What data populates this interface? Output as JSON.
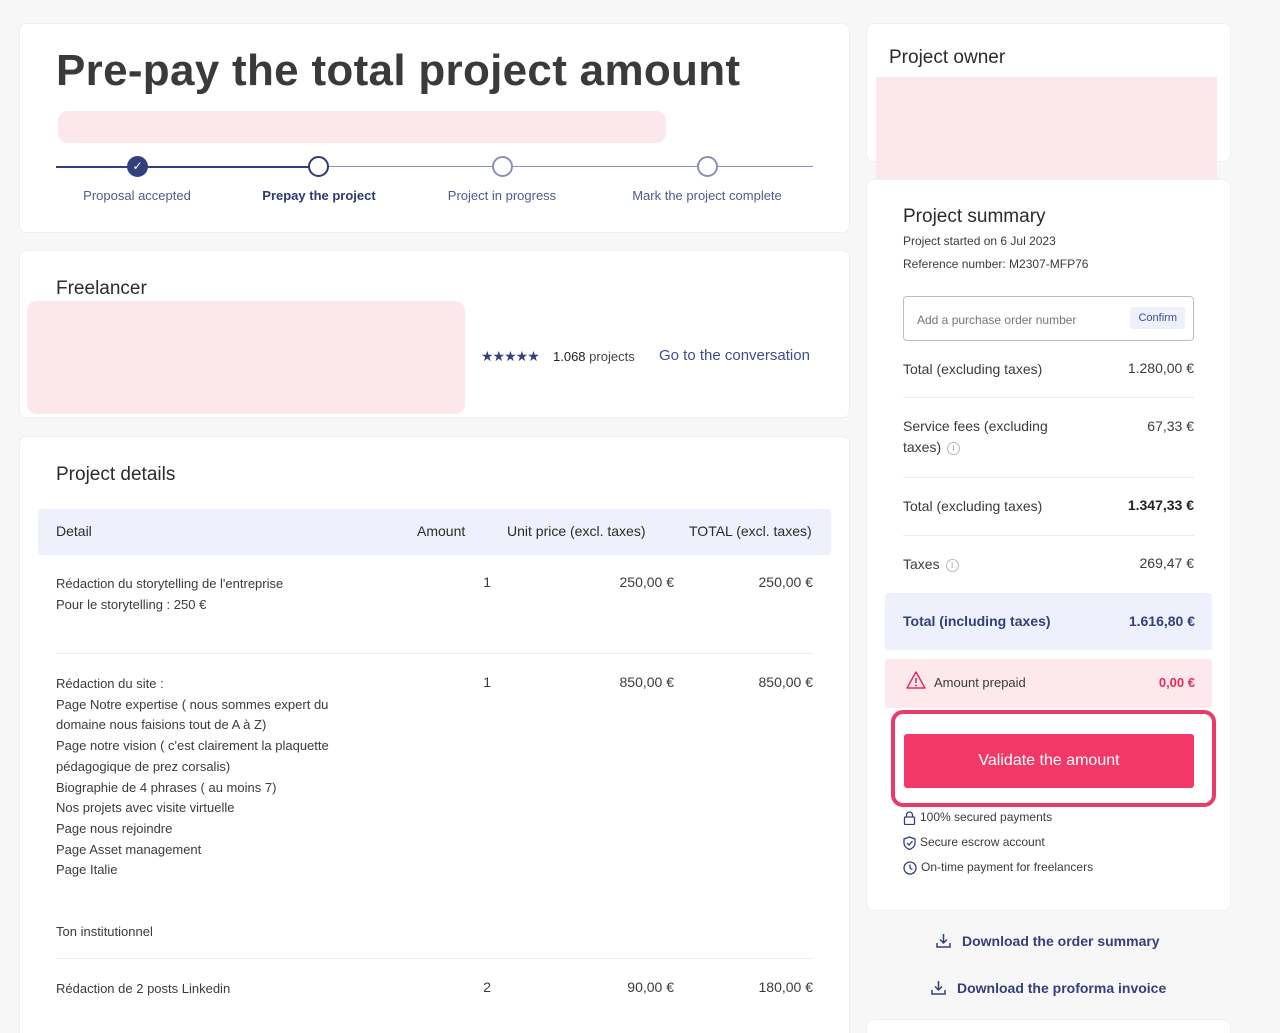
{
  "header": {
    "title": "Pre-pay the total project amount",
    "steps": [
      {
        "label": "Proposal accepted"
      },
      {
        "label": "Prepay the project"
      },
      {
        "label": "Project in progress"
      },
      {
        "label": "Mark the project complete"
      }
    ],
    "current_step": 2
  },
  "freelancer": {
    "title": "Freelancer",
    "rating_stars": "★★★★★",
    "projects_count": "1.068",
    "projects_label": "projects",
    "conversation_link": "Go to the conversation"
  },
  "details": {
    "title": "Project details",
    "columns": [
      "Detail",
      "Amount",
      "Unit price (excl. taxes)",
      "TOTAL (excl. taxes)"
    ],
    "rows": [
      {
        "detail": "Rédaction du storytelling de l'entreprise\nPour le storytelling : 250 €",
        "amount": "1",
        "unit_price": "250,00 €",
        "total": "250,00 €"
      },
      {
        "detail": "Rédaction du site :\nPage Notre expertise ( nous sommes expert du domaine nous faisions tout de A à Z)\nPage notre vision ( c'est clairement la plaquette pédagogique de prez corsalis)\nBiographie de 4 phrases ( au moins 7)\nNos projets avec visite virtuelle\nPage nous rejoindre\nPage Asset management\nPage Italie\n\n\nTon institutionnel",
        "amount": "1",
        "unit_price": "850,00 €",
        "total": "850,00 €"
      },
      {
        "detail": "Rédaction de 2 posts Linkedin",
        "amount": "2",
        "unit_price": "90,00 €",
        "total": "180,00 €"
      }
    ]
  },
  "owner": {
    "title": "Project owner"
  },
  "summary": {
    "title": "Project summary",
    "started": "Project started on 6 Jul 2023",
    "reference": "Reference number: M2307-MFP76",
    "po_placeholder": "Add a purchase order number",
    "po_confirm": "Confirm",
    "lines": [
      {
        "label": "Total (excluding taxes)",
        "value": "1.280,00 €"
      },
      {
        "label": "Service fees (excluding taxes)",
        "value": "67,33 €"
      },
      {
        "label": "Total (excluding taxes)",
        "value": "1.347,33 €"
      },
      {
        "label": "Taxes",
        "value": "269,47 €"
      }
    ],
    "total_incl_label": "Total (including taxes)",
    "total_incl_value": "1.616,80 €",
    "prepaid_label": "Amount prepaid",
    "prepaid_value": "0,00 €",
    "validate_button": "Validate the amount",
    "features": [
      {
        "icon": "lock-icon",
        "label": "100% secured payments"
      },
      {
        "icon": "shield-check-icon",
        "label": "Secure escrow account"
      },
      {
        "icon": "clock-icon",
        "label": "On-time payment for freelancers"
      }
    ],
    "accent_color": "#f33868",
    "brand_color": "#34407c"
  },
  "downloads": {
    "order_summary": "Download the order summary",
    "proforma_invoice": "Download the proforma invoice"
  }
}
